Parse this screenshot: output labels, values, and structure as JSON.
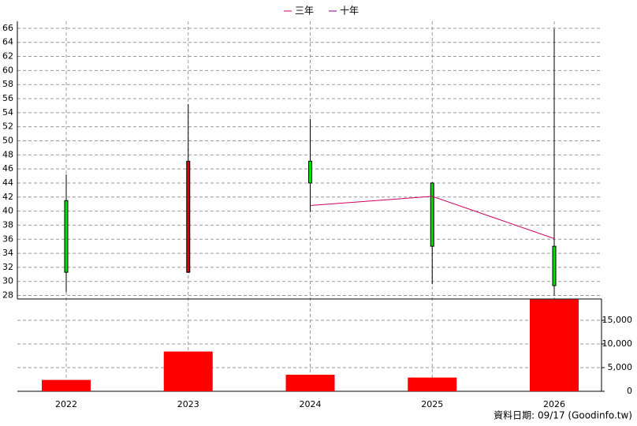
{
  "chart_data": {
    "type": "candlestick",
    "categories": [
      "2022",
      "2023",
      "2024",
      "2025",
      "2026"
    ],
    "open": [
      41.5,
      31.3,
      47.1,
      44.0,
      35.0
    ],
    "high": [
      45.2,
      55.2,
      53.1,
      44.1,
      65.9
    ],
    "low": [
      28.5,
      31.2,
      39.9,
      29.6,
      28.0
    ],
    "close": [
      31.3,
      47.1,
      44.0,
      35.0,
      29.4
    ],
    "up_color": "#e00000",
    "down_color": "#00e000",
    "lines": [
      {
        "name": "三年",
        "color": "#cc0066",
        "values": [
          null,
          null,
          40.8,
          42.1,
          36.1
        ]
      },
      {
        "name": "十年",
        "color": "#800080",
        "values": [
          null,
          null,
          null,
          null,
          null
        ]
      }
    ],
    "ylim": [
      27.5,
      67
    ],
    "yticks": [
      28,
      30,
      32,
      34,
      36,
      38,
      40,
      42,
      44,
      46,
      48,
      50,
      52,
      54,
      56,
      58,
      60,
      62,
      64,
      66
    ],
    "grid": true,
    "volume": {
      "type": "bar",
      "values": [
        2400,
        8400,
        3500,
        2900,
        19400
      ],
      "color": "#ff0000",
      "y2lim": [
        0,
        19500
      ],
      "y2ticks": [
        0,
        {
          "value": 5000,
          "label": "5,000"
        },
        {
          "value": 10000,
          "label": "10,000"
        },
        {
          "value": 15000,
          "label": "15,000"
        }
      ]
    },
    "footnote": "資料日期: 09/17  (Goodinfo.tw)"
  }
}
